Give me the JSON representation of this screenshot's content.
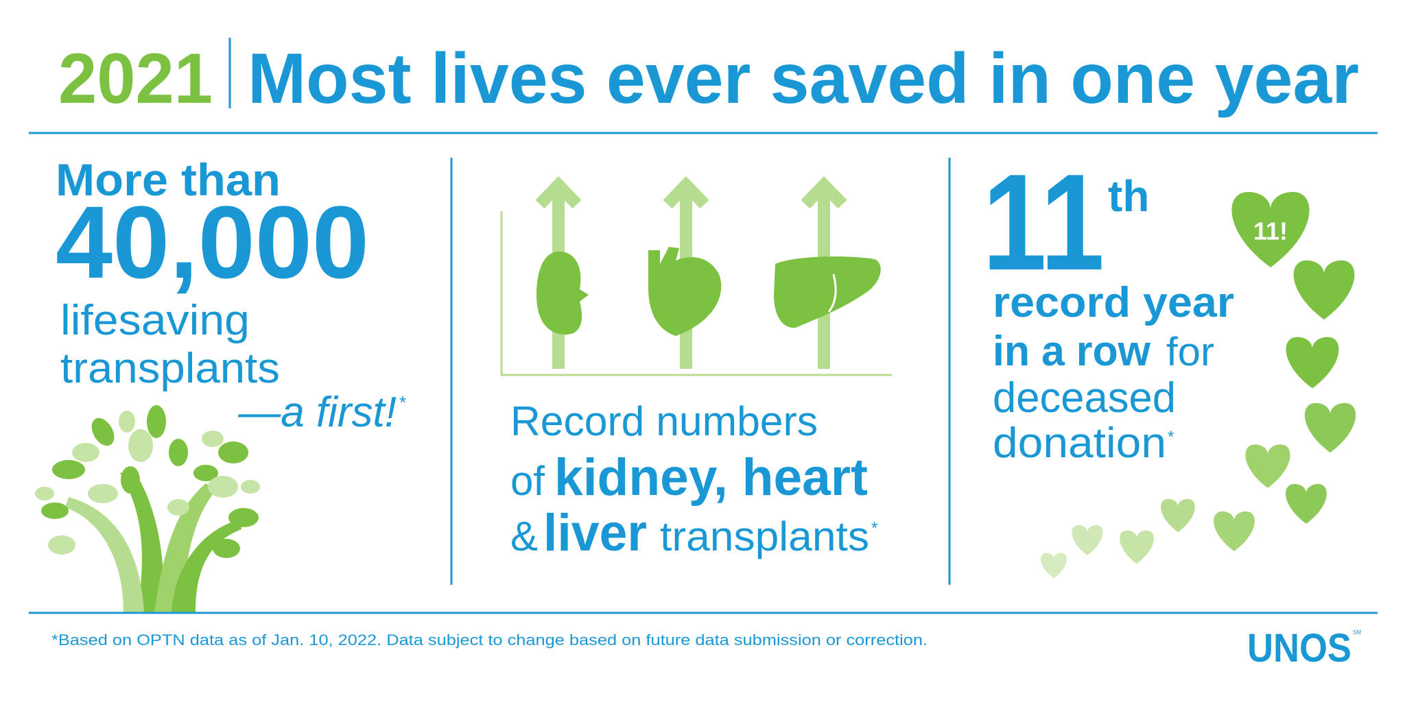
{
  "header": {
    "year": "2021",
    "title": "Most lives ever saved in one year"
  },
  "panels": [
    {
      "lead": "More than",
      "number": "40,000",
      "lines": [
        "lifesaving",
        "transplants"
      ],
      "note": "—a first!",
      "asterisk": "*"
    },
    {
      "line1": "Record numbers",
      "of": "of",
      "organs_1": "kidney, heart",
      "amp": "&",
      "organs_2": "liver",
      "tail": "transplants",
      "asterisk": "*"
    },
    {
      "rank": "11",
      "suffix": "th",
      "bold_1": "record year",
      "bold_2": "in a row",
      "for": "for",
      "line3": "deceased",
      "line4": "donation",
      "asterisk": "*",
      "heart_label": "11!"
    }
  ],
  "footnote": "*Based on OPTN data as of Jan. 10, 2022. Data subject to change based on future data submission or correction.",
  "logo": {
    "name": "UNOS",
    "mark": "SM"
  }
}
